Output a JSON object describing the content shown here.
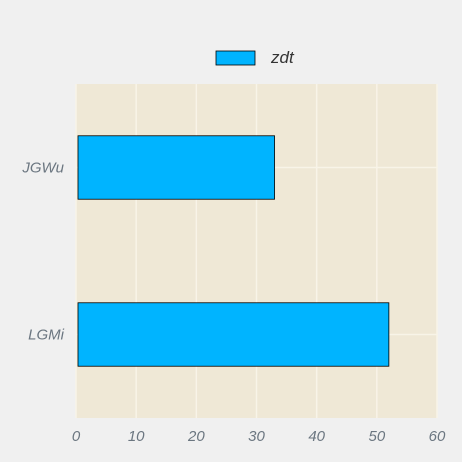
{
  "chart_data": {
    "type": "bar",
    "orientation": "horizontal",
    "categories": [
      "JGWu",
      "LGMi"
    ],
    "series": [
      {
        "name": "zdt",
        "values": [
          33,
          52
        ],
        "color": "#00b4ff"
      }
    ],
    "xlim": [
      0,
      60
    ],
    "xticks": [
      0,
      10,
      20,
      30,
      40,
      50,
      60
    ],
    "grid": true,
    "legend": "top-center",
    "plot_background": "#efe8d6",
    "grid_color": "#f8f4e8",
    "edge_color": "#000000",
    "tick_label_color": "#6b7680"
  }
}
